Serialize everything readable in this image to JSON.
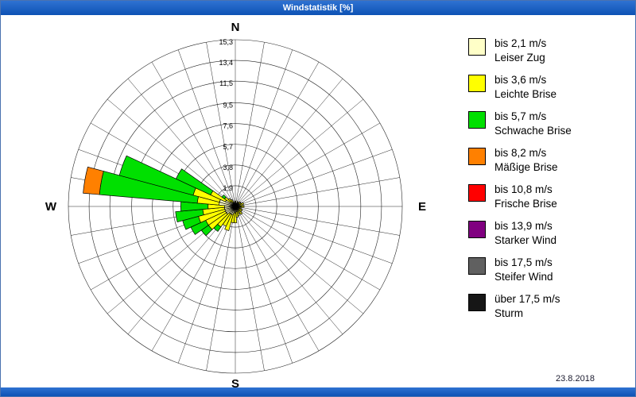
{
  "window": {
    "title": "Windstatistik [%]"
  },
  "footer": {
    "date": "23.8.2018"
  },
  "chart_data": {
    "type": "windrose-polar-bar",
    "title": "Windstatistik [%]",
    "units": "%",
    "sector_width_deg": 10,
    "rings": [
      1.9,
      3.8,
      5.7,
      7.6,
      9.5,
      11.5,
      13.4,
      15.3
    ],
    "ring_labels": [
      "1,9",
      "3,8",
      "5,7",
      "7,6",
      "9,5",
      "11,5",
      "13,4",
      "15,3"
    ],
    "compass": {
      "n": "N",
      "e": "E",
      "s": "S",
      "w": "W"
    },
    "grid": {
      "circles": 8,
      "spokes_every_deg": 10,
      "line_color": "#222222"
    },
    "speed_classes": [
      {
        "label": "bis 2,1 m/s",
        "name": "Leiser Zug",
        "color": "#ffffc8"
      },
      {
        "label": "bis 3,6 m/s",
        "name": "Leichte Brise",
        "color": "#ffff00"
      },
      {
        "label": "bis 5,7 m/s",
        "name": "Schwache Brise",
        "color": "#00e000"
      },
      {
        "label": "bis 8,2 m/s",
        "name": "Mäßige Brise",
        "color": "#ff8000"
      },
      {
        "label": "bis 10,8 m/s",
        "name": "Frische Brise",
        "color": "#ff0000"
      },
      {
        "label": "bis 13,9 m/s",
        "name": "Starker Wind",
        "color": "#800080"
      },
      {
        "label": "bis 17,5 m/s",
        "name": "Steifer Wind",
        "color": "#606060"
      },
      {
        "label": "über 17,5 m/s",
        "name": "Sturm",
        "color": "#161616"
      }
    ],
    "directions": [
      {
        "deg": 0,
        "values": [
          0.4,
          0.1,
          0,
          0
        ]
      },
      {
        "deg": 10,
        "values": [
          0.3,
          0,
          0,
          0
        ]
      },
      {
        "deg": 20,
        "values": [
          0.3,
          0,
          0,
          0
        ]
      },
      {
        "deg": 30,
        "values": [
          0.4,
          0.1,
          0,
          0
        ]
      },
      {
        "deg": 40,
        "values": [
          0.3,
          0.1,
          0,
          0
        ]
      },
      {
        "deg": 50,
        "values": [
          0.4,
          0.2,
          0,
          0
        ]
      },
      {
        "deg": 60,
        "values": [
          0.4,
          0.2,
          0,
          0
        ]
      },
      {
        "deg": 70,
        "values": [
          0.5,
          0.3,
          0,
          0
        ]
      },
      {
        "deg": 80,
        "values": [
          0.4,
          0.2,
          0,
          0
        ]
      },
      {
        "deg": 90,
        "values": [
          0.5,
          0.3,
          0,
          0
        ]
      },
      {
        "deg": 100,
        "values": [
          0.4,
          0.2,
          0,
          0
        ]
      },
      {
        "deg": 110,
        "values": [
          0.3,
          0.2,
          0,
          0
        ]
      },
      {
        "deg": 120,
        "values": [
          0.4,
          0.3,
          0,
          0
        ]
      },
      {
        "deg": 130,
        "values": [
          0.4,
          0.3,
          0,
          0
        ]
      },
      {
        "deg": 140,
        "values": [
          0.5,
          0.4,
          0,
          0
        ]
      },
      {
        "deg": 150,
        "values": [
          0.4,
          0.3,
          0,
          0
        ]
      },
      {
        "deg": 160,
        "values": [
          0.5,
          0.4,
          0,
          0
        ]
      },
      {
        "deg": 170,
        "values": [
          0.5,
          0.5,
          0,
          0
        ]
      },
      {
        "deg": 180,
        "values": [
          0.6,
          0.9,
          0,
          0
        ]
      },
      {
        "deg": 190,
        "values": [
          0.6,
          0.9,
          0,
          0
        ]
      },
      {
        "deg": 200,
        "values": [
          0.8,
          1.5,
          0,
          0
        ]
      },
      {
        "deg": 210,
        "values": [
          0.8,
          1.2,
          0,
          0
        ]
      },
      {
        "deg": 220,
        "values": [
          0.8,
          1.5,
          0.5,
          0
        ]
      },
      {
        "deg": 230,
        "values": [
          1.0,
          2.0,
          0.8,
          0
        ]
      },
      {
        "deg": 240,
        "values": [
          1.0,
          2.0,
          1.5,
          0
        ]
      },
      {
        "deg": 250,
        "values": [
          1.0,
          2.5,
          1.5,
          0
        ]
      },
      {
        "deg": 260,
        "values": [
          1.0,
          2.0,
          2.5,
          0
        ]
      },
      {
        "deg": 270,
        "values": [
          1.0,
          1.5,
          2.5,
          0
        ]
      },
      {
        "deg": 280,
        "values": [
          1.5,
          2.0,
          9.0,
          1.5
        ]
      },
      {
        "deg": 290,
        "values": [
          1.5,
          2.5,
          7.0,
          0
        ]
      },
      {
        "deg": 300,
        "values": [
          1.0,
          1.5,
          3.5,
          0
        ]
      },
      {
        "deg": 310,
        "values": [
          0.6,
          0.6,
          0.3,
          0
        ]
      },
      {
        "deg": 320,
        "values": [
          0.5,
          0.4,
          0,
          0
        ]
      },
      {
        "deg": 330,
        "values": [
          0.4,
          0.3,
          0,
          0
        ]
      },
      {
        "deg": 340,
        "values": [
          0.4,
          0,
          0,
          0
        ]
      },
      {
        "deg": 350,
        "values": [
          0.3,
          0,
          0,
          0
        ]
      }
    ]
  }
}
